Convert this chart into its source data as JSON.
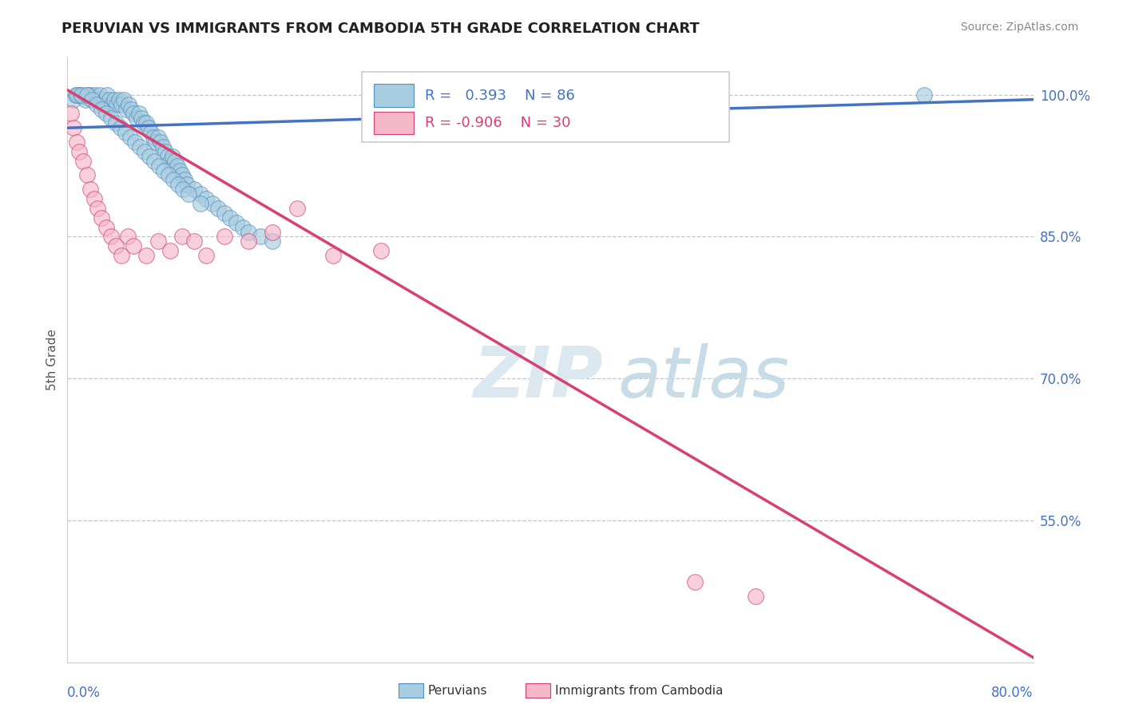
{
  "title": "PERUVIAN VS IMMIGRANTS FROM CAMBODIA 5TH GRADE CORRELATION CHART",
  "source": "Source: ZipAtlas.com",
  "ylabel": "5th Grade",
  "ylabel_right_ticks": [
    100.0,
    85.0,
    70.0,
    55.0
  ],
  "xmin": 0.0,
  "xmax": 80.0,
  "ymin": 40.0,
  "ymax": 104.0,
  "blue_R": 0.393,
  "blue_N": 86,
  "pink_R": -0.906,
  "pink_N": 30,
  "blue_color": "#a8cce0",
  "pink_color": "#f4b8c8",
  "blue_line_color": "#4472c4",
  "pink_line_color": "#d94070",
  "blue_edge_color": "#5090c0",
  "pink_edge_color": "#d04070",
  "blue_scatter_x": [
    0.5,
    0.7,
    0.9,
    1.1,
    1.3,
    1.5,
    1.7,
    1.9,
    2.1,
    2.3,
    2.5,
    2.7,
    2.9,
    3.1,
    3.3,
    3.5,
    3.7,
    3.9,
    4.1,
    4.3,
    4.5,
    4.7,
    4.9,
    5.1,
    5.3,
    5.5,
    5.7,
    5.9,
    6.1,
    6.3,
    6.5,
    6.7,
    6.9,
    7.1,
    7.3,
    7.5,
    7.7,
    7.9,
    8.1,
    8.3,
    8.5,
    8.7,
    8.9,
    9.1,
    9.3,
    9.5,
    9.7,
    9.9,
    10.5,
    11.0,
    11.5,
    12.0,
    12.5,
    13.0,
    13.5,
    14.0,
    14.5,
    15.0,
    16.0,
    17.0,
    0.8,
    1.2,
    1.6,
    2.0,
    2.4,
    2.8,
    3.2,
    3.6,
    4.0,
    4.4,
    4.8,
    5.2,
    5.6,
    6.0,
    6.4,
    6.8,
    7.2,
    7.6,
    8.0,
    8.4,
    8.8,
    9.2,
    9.6,
    10.0,
    11.0,
    71.0
  ],
  "blue_scatter_y": [
    99.5,
    100.0,
    100.0,
    100.0,
    99.8,
    99.5,
    100.0,
    100.0,
    99.5,
    100.0,
    99.5,
    100.0,
    99.0,
    99.5,
    100.0,
    99.5,
    99.0,
    99.5,
    99.0,
    99.5,
    99.0,
    99.5,
    98.5,
    99.0,
    98.5,
    98.0,
    97.5,
    98.0,
    97.5,
    97.0,
    97.0,
    96.5,
    96.0,
    95.5,
    95.0,
    95.5,
    95.0,
    94.5,
    94.0,
    93.5,
    93.0,
    93.5,
    93.0,
    92.5,
    92.0,
    91.5,
    91.0,
    90.5,
    90.0,
    89.5,
    89.0,
    88.5,
    88.0,
    87.5,
    87.0,
    86.5,
    86.0,
    85.5,
    85.0,
    84.5,
    100.0,
    100.0,
    100.0,
    99.5,
    99.0,
    98.5,
    98.0,
    97.5,
    97.0,
    96.5,
    96.0,
    95.5,
    95.0,
    94.5,
    94.0,
    93.5,
    93.0,
    92.5,
    92.0,
    91.5,
    91.0,
    90.5,
    90.0,
    89.5,
    88.5,
    100.0
  ],
  "pink_scatter_x": [
    0.3,
    0.5,
    0.8,
    1.0,
    1.3,
    1.6,
    1.9,
    2.2,
    2.5,
    2.8,
    3.2,
    3.6,
    4.0,
    4.5,
    5.0,
    5.5,
    6.5,
    7.5,
    8.5,
    9.5,
    10.5,
    11.5,
    13.0,
    15.0,
    17.0,
    19.0,
    22.0,
    26.0,
    52.0,
    57.0
  ],
  "pink_scatter_y": [
    98.0,
    96.5,
    95.0,
    94.0,
    93.0,
    91.5,
    90.0,
    89.0,
    88.0,
    87.0,
    86.0,
    85.0,
    84.0,
    83.0,
    85.0,
    84.0,
    83.0,
    84.5,
    83.5,
    85.0,
    84.5,
    83.0,
    85.0,
    84.5,
    85.5,
    88.0,
    83.0,
    83.5,
    48.5,
    47.0
  ],
  "blue_line_x": [
    0.0,
    80.0
  ],
  "blue_line_y": [
    96.5,
    99.5
  ],
  "pink_line_x": [
    0.0,
    80.0
  ],
  "pink_line_y": [
    100.5,
    40.5
  ]
}
